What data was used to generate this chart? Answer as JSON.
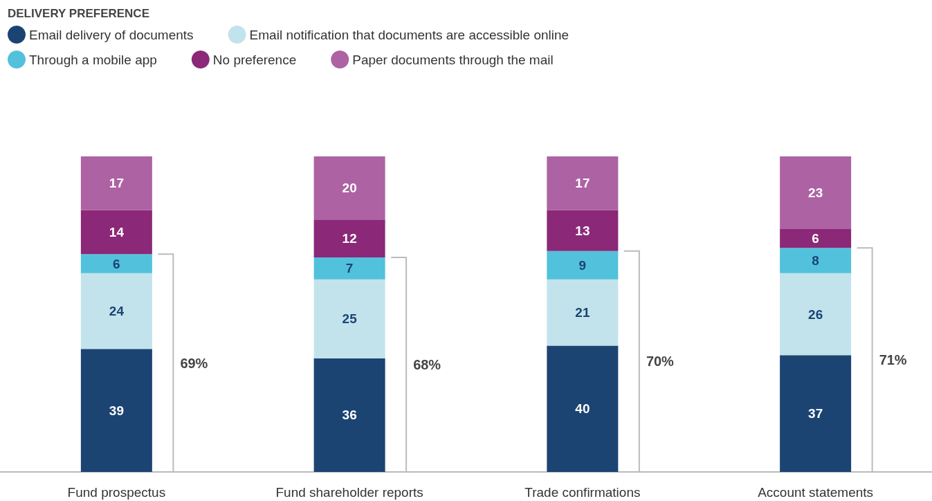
{
  "chart_data": {
    "type": "bar",
    "stacked": true,
    "legend_title": "DELIVERY PREFERENCE",
    "legend": "top left",
    "grid": false,
    "data_labels": true,
    "categories": [
      "Fund prospectus",
      "Fund shareholder reports",
      "Trade confirmations",
      "Account statements"
    ],
    "ylim": [
      0,
      100
    ],
    "series": [
      {
        "name": "Email delivery of documents",
        "color": "#1b4473",
        "values": [
          39,
          36,
          40,
          37
        ]
      },
      {
        "name": "Email notification that documents are accessible online",
        "color": "#c2e2ec",
        "values": [
          24,
          25,
          21,
          26
        ]
      },
      {
        "name": "Through a mobile app",
        "color": "#52c1dc",
        "values": [
          6,
          7,
          9,
          8
        ]
      },
      {
        "name": "No preference",
        "color": "#8b2878",
        "values": [
          14,
          12,
          13,
          6
        ]
      },
      {
        "name": "Paper documents through the mail",
        "color": "#ad63a3",
        "values": [
          17,
          20,
          17,
          23
        ]
      }
    ],
    "annotations": [
      "69%",
      "68%",
      "70%",
      "71%"
    ]
  }
}
